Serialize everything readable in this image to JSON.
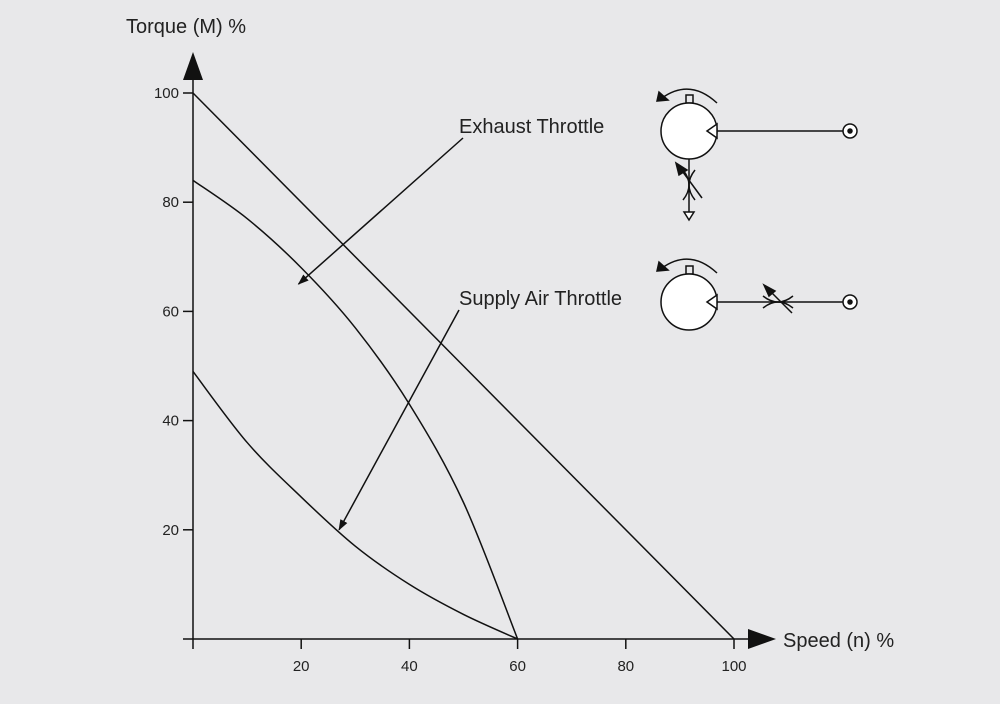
{
  "chart_data": {
    "type": "line",
    "xlabel": "Speed (n) %",
    "ylabel": "Torque (M) %",
    "xlim": [
      0,
      100
    ],
    "ylim": [
      0,
      100
    ],
    "x_ticks": [
      "20",
      "40",
      "60",
      "80",
      "100"
    ],
    "y_ticks": [
      "20",
      "40",
      "60",
      "80",
      "100"
    ],
    "grid": false,
    "series": [
      {
        "x": [
          0,
          100
        ],
        "y": [
          100,
          0
        ]
      },
      {
        "x": [
          0,
          10,
          20,
          30,
          40,
          50,
          60
        ],
        "y": [
          84,
          77,
          68,
          57,
          43,
          25,
          0
        ]
      },
      {
        "x": [
          0,
          10,
          20,
          30,
          40,
          50,
          60
        ],
        "y": [
          49,
          36,
          26,
          17,
          10,
          4.5,
          0
        ]
      }
    ],
    "annotations": [
      {
        "text": "Exhaust Throttle",
        "points_to": {
          "x": 19.5,
          "y": 65
        }
      },
      {
        "text": "Supply Air Throttle",
        "points_to": {
          "x": 27,
          "y": 20
        }
      }
    ]
  },
  "diagrams": [
    {
      "name": "exhaust-throttle-circuit",
      "throttle_location": "exhaust"
    },
    {
      "name": "supply-air-throttle-circuit",
      "throttle_location": "supply"
    }
  ]
}
